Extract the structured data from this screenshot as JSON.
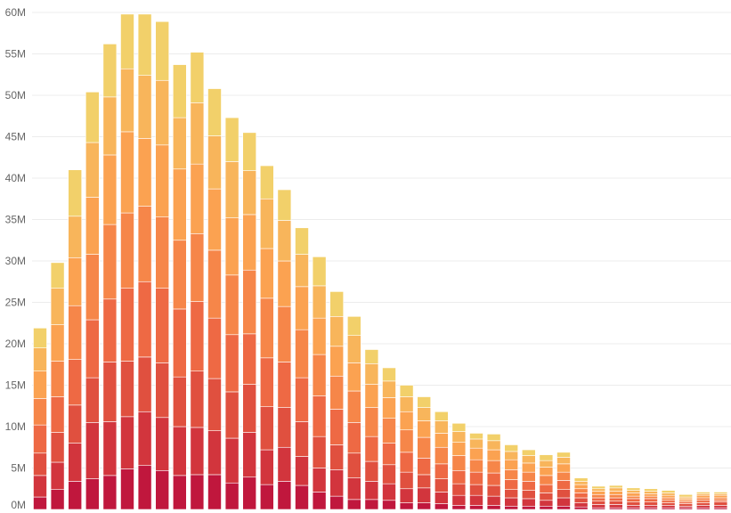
{
  "chart_data": {
    "type": "bar",
    "stacked": true,
    "bar_count": 43,
    "ylim": [
      0,
      60
    ],
    "y_ticks": [
      0,
      5,
      10,
      15,
      20,
      25,
      30,
      35,
      40,
      45,
      50,
      55,
      60
    ],
    "y_tick_labels": [
      "0M",
      "5M",
      "10M",
      "15M",
      "20M",
      "25M",
      "30M",
      "35M",
      "40M",
      "45M",
      "50M",
      "55M",
      "60M"
    ],
    "y_unit": "millions",
    "grid": true,
    "legend": "none",
    "colors": [
      "#c0173d",
      "#d2353d",
      "#e0503f",
      "#ee6944",
      "#f68649",
      "#fba251",
      "#f8b55b",
      "#f2d06a"
    ],
    "series": [
      {
        "values": [
          1.5,
          2.4,
          3.4,
          3.7,
          4.1,
          4.9,
          5.3,
          4.7,
          4.1,
          4.2,
          4.2,
          3.2,
          3.9,
          3.0,
          3.4,
          2.9,
          2.1,
          1.6,
          1.2,
          1.2,
          1.1,
          0.8,
          0.8,
          0.7,
          0.5,
          0.5,
          0.5,
          0.4,
          0.4,
          0.4,
          0.4,
          0.3,
          0.2,
          0.2,
          0.2,
          0.2,
          0.2,
          0.2,
          0.2,
          0.2,
          0.2,
          0.2,
          0.2
        ]
      },
      {
        "values": [
          2.6,
          3.3,
          4.6,
          6.8,
          6.5,
          6.3,
          6.5,
          6.4,
          5.9,
          5.7,
          5.3,
          5.4,
          5.4,
          4.2,
          4.1,
          3.5,
          2.9,
          3.2,
          2.6,
          2.2,
          2.0,
          1.7,
          1.8,
          1.4,
          1.2,
          1.2,
          1.1,
          1.0,
          0.9,
          0.7,
          1.0,
          0.5,
          0.4,
          0.4,
          0.3,
          0.3,
          0.3,
          0.2,
          0.3,
          0.3,
          0.2,
          0.3,
          0.3
        ]
      },
      {
        "values": [
          2.7,
          3.6,
          4.6,
          5.4,
          7.2,
          6.7,
          6.6,
          6.6,
          6.0,
          6.8,
          6.3,
          5.6,
          5.8,
          5.2,
          4.8,
          4.2,
          3.8,
          3.0,
          3.0,
          2.4,
          2.3,
          2.0,
          1.6,
          1.6,
          1.4,
          1.3,
          1.3,
          1.0,
          1.0,
          0.9,
          1.0,
          0.6,
          0.4,
          0.4,
          0.4,
          0.4,
          0.3,
          0.3,
          0.3,
          0.4,
          0.3,
          0.2,
          0.3
        ]
      },
      {
        "values": [
          3.4,
          4.3,
          5.5,
          7.0,
          7.6,
          8.8,
          9.1,
          9.0,
          8.2,
          8.4,
          7.3,
          6.9,
          6.1,
          5.9,
          5.5,
          5.3,
          4.9,
          4.3,
          3.7,
          3.0,
          2.6,
          2.4,
          2.0,
          1.8,
          1.6,
          1.5,
          1.5,
          1.2,
          1.1,
          1.0,
          1.1,
          0.6,
          0.4,
          0.4,
          0.4,
          0.4,
          0.3,
          0.2,
          0.3,
          0.2,
          0.2,
          0.3,
          0.3
        ]
      },
      {
        "values": [
          3.2,
          4.3,
          6.5,
          7.9,
          9.0,
          9.1,
          9.1,
          8.6,
          8.3,
          8.2,
          8.2,
          7.2,
          7.7,
          7.2,
          6.7,
          5.8,
          5.0,
          4.0,
          3.8,
          3.5,
          3.0,
          2.7,
          2.5,
          2.0,
          1.8,
          1.5,
          1.5,
          1.2,
          1.1,
          1.1,
          1.0,
          0.5,
          0.4,
          0.4,
          0.3,
          0.3,
          0.3,
          0.2,
          0.3,
          0.3,
          0.2,
          0.2,
          0.3
        ]
      },
      {
        "values": [
          3.3,
          4.4,
          5.8,
          6.9,
          8.4,
          9.8,
          8.2,
          8.7,
          8.6,
          8.4,
          7.4,
          6.9,
          6.7,
          6.0,
          5.5,
          5.2,
          4.4,
          3.6,
          3.4,
          2.8,
          2.5,
          2.2,
          2.0,
          1.7,
          1.6,
          1.4,
          1.3,
          1.2,
          1.1,
          1.0,
          1.0,
          0.5,
          0.4,
          0.4,
          0.4,
          0.3,
          0.3,
          0.2,
          0.3,
          0.3,
          0.2,
          0.2,
          0.2
        ]
      },
      {
        "values": [
          2.8,
          4.4,
          5.0,
          6.6,
          7.0,
          7.6,
          7.6,
          7.8,
          6.2,
          7.4,
          6.4,
          6.8,
          5.3,
          6.0,
          4.9,
          3.9,
          3.9,
          3.6,
          3.3,
          2.5,
          2.0,
          1.8,
          1.6,
          1.5,
          1.3,
          1.1,
          1.1,
          1.0,
          0.9,
          0.8,
          0.8,
          0.4,
          0.3,
          0.4,
          0.3,
          0.3,
          0.3,
          0.2,
          0.2,
          0.2,
          0.2,
          0.2,
          0.2
        ]
      },
      {
        "values": [
          2.4,
          3.1,
          5.6,
          6.1,
          6.4,
          6.6,
          7.4,
          7.1,
          6.4,
          6.1,
          5.7,
          5.3,
          4.6,
          4.0,
          3.7,
          3.2,
          3.5,
          3.0,
          2.3,
          1.7,
          1.6,
          1.4,
          1.3,
          1.1,
          1.0,
          0.7,
          0.8,
          0.8,
          0.7,
          0.7,
          0.6,
          0.4,
          0.3,
          0.3,
          0.3,
          0.3,
          0.3,
          0.3,
          0.2,
          0.2,
          0.2,
          0.1,
          0.1
        ]
      }
    ]
  }
}
